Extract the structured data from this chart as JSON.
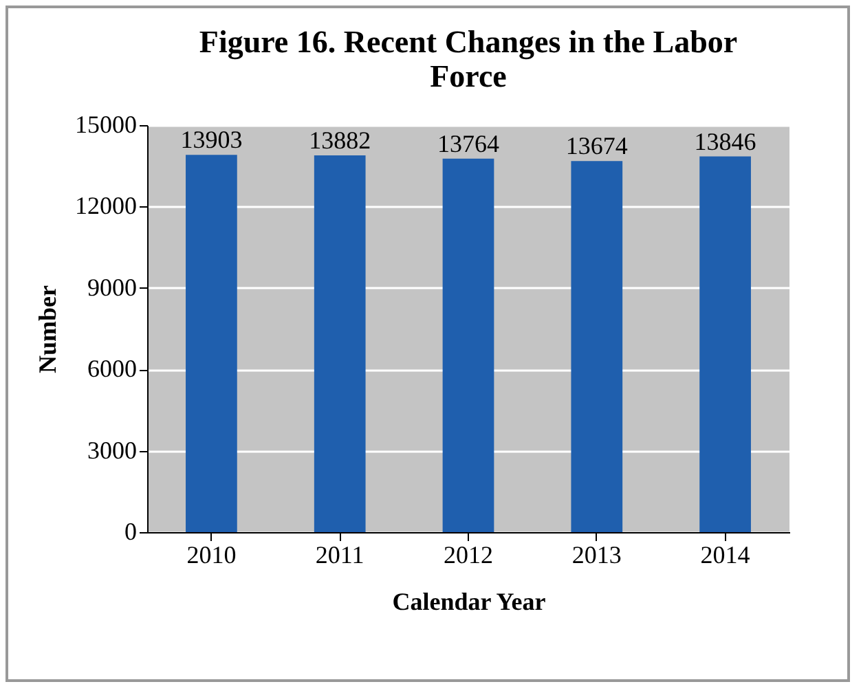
{
  "chart_data": {
    "type": "bar",
    "title": "Figure 16.  Recent Changes in the Labor Force",
    "xlabel": "Calendar Year",
    "ylabel": "Number",
    "categories": [
      "2010",
      "2011",
      "2012",
      "2013",
      "2014"
    ],
    "values": [
      13903,
      13882,
      13764,
      13674,
      13846
    ],
    "color": "#1f5fae",
    "ylim": [
      0,
      15000
    ],
    "yticks": [
      0,
      3000,
      6000,
      9000,
      12000,
      15000
    ],
    "grid": "y",
    "data_labels": true
  }
}
